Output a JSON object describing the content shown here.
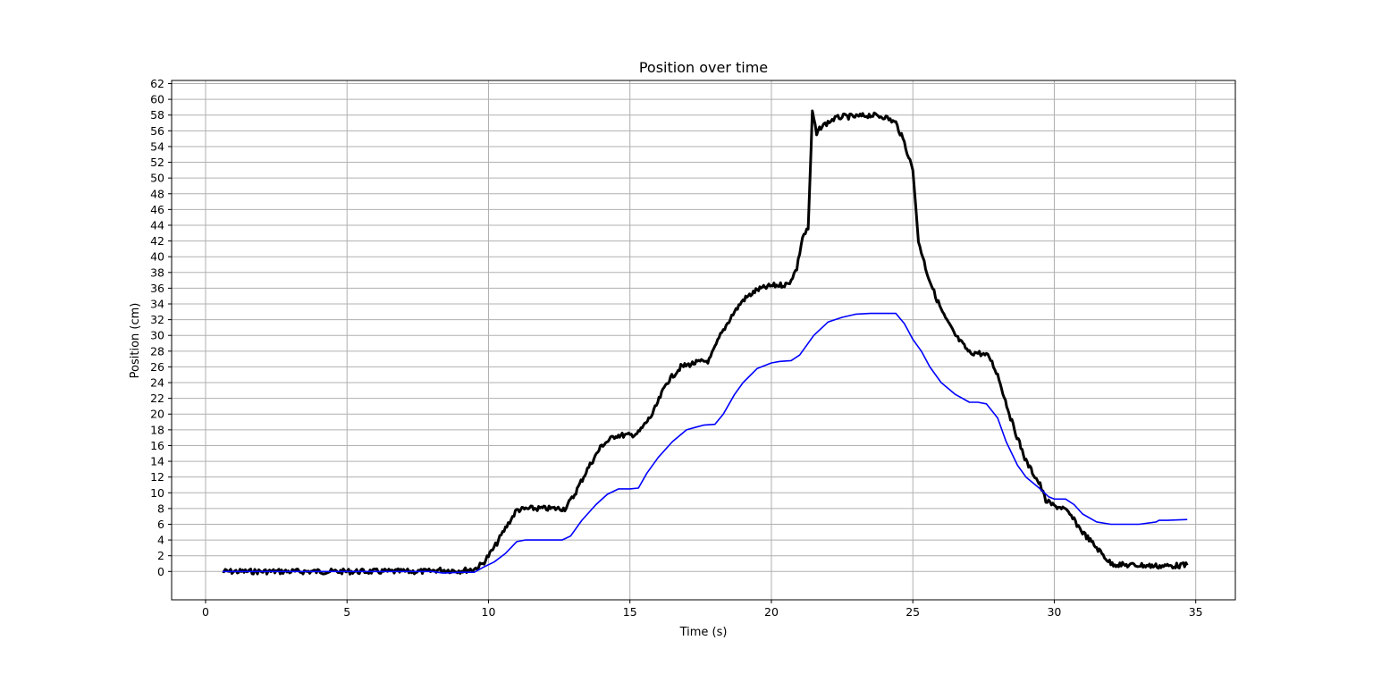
{
  "chart_data": {
    "type": "line",
    "title": "Position over time",
    "xlabel": "Time (s)",
    "ylabel": "Position (cm)",
    "xlim": [
      -1.2,
      36.4
    ],
    "ylim": [
      -3.6,
      62.4
    ],
    "xticks": [
      0,
      5,
      10,
      15,
      20,
      25,
      30,
      35
    ],
    "yticks": [
      0,
      2,
      4,
      6,
      8,
      10,
      12,
      14,
      16,
      18,
      20,
      22,
      24,
      26,
      28,
      30,
      32,
      34,
      36,
      38,
      40,
      42,
      44,
      46,
      48,
      50,
      52,
      54,
      56,
      58,
      60,
      62
    ],
    "grid": true,
    "series": [
      {
        "color": "#000000",
        "style": "noisy-thick",
        "x": [
          0.6,
          7.9,
          8.2,
          9.0,
          9.5,
          9.8,
          10.2,
          10.6,
          11.0,
          11.5,
          12.0,
          12.7,
          13.0,
          13.5,
          14.0,
          14.5,
          15.0,
          15.3,
          15.8,
          16.3,
          16.8,
          17.3,
          17.8,
          18.2,
          18.6,
          19.0,
          19.5,
          20.0,
          20.6,
          20.9,
          21.1,
          21.3,
          21.45,
          21.6,
          21.75,
          22.2,
          22.5,
          23.0,
          23.5,
          24.0,
          24.4,
          24.7,
          25.0,
          25.2,
          25.5,
          25.8,
          26.1,
          26.5,
          27.0,
          27.3,
          27.7,
          28.0,
          28.5,
          29.0,
          29.5,
          29.7,
          30.0,
          30.3,
          30.6,
          31.0,
          31.5,
          32.0,
          32.5,
          33.0,
          33.5,
          34.0,
          34.7
        ],
        "y": [
          0.0,
          0.0,
          0.2,
          0.1,
          0.3,
          1.0,
          3.0,
          5.5,
          7.8,
          8.0,
          8.0,
          8.0,
          9.5,
          13.0,
          16.0,
          17.3,
          17.3,
          17.6,
          20.0,
          24.0,
          26.0,
          26.5,
          26.8,
          30.0,
          32.5,
          34.5,
          35.8,
          36.3,
          36.5,
          38.5,
          42.5,
          43.5,
          58.5,
          55.5,
          56.5,
          57.5,
          57.8,
          57.8,
          58.0,
          57.8,
          57.0,
          54.5,
          51.0,
          42.0,
          38.0,
          35.0,
          32.5,
          30.0,
          27.8,
          27.8,
          27.3,
          25.0,
          19.0,
          14.0,
          11.0,
          9.0,
          8.3,
          8.1,
          7.0,
          5.0,
          3.0,
          1.0,
          0.8,
          0.8,
          0.7,
          0.7,
          0.8
        ]
      },
      {
        "color": "#0000ff",
        "style": "line",
        "x": [
          0.6,
          8.0,
          8.4,
          9.0,
          9.5,
          9.8,
          10.2,
          10.6,
          11.0,
          11.3,
          12.0,
          12.6,
          12.9,
          13.3,
          13.8,
          14.2,
          14.6,
          15.0,
          15.3,
          15.6,
          16.0,
          16.5,
          17.0,
          17.3,
          17.6,
          18.0,
          18.3,
          18.7,
          19.0,
          19.5,
          20.0,
          20.3,
          20.7,
          21.0,
          21.5,
          22.0,
          22.5,
          23.0,
          23.5,
          24.0,
          24.4,
          24.7,
          25.0,
          25.3,
          25.6,
          26.0,
          26.5,
          27.0,
          27.3,
          27.6,
          28.0,
          28.3,
          28.7,
          29.0,
          29.5,
          29.8,
          30.0,
          30.4,
          30.7,
          31.0,
          31.5,
          32.0,
          33.0,
          33.6,
          33.7,
          34.0,
          34.7
        ],
        "y": [
          0.0,
          0.0,
          -0.2,
          -0.1,
          -0.1,
          0.5,
          1.2,
          2.3,
          3.8,
          4.0,
          4.0,
          4.0,
          4.5,
          6.5,
          8.5,
          9.8,
          10.5,
          10.5,
          10.6,
          12.5,
          14.5,
          16.5,
          18.0,
          18.3,
          18.6,
          18.7,
          20.0,
          22.5,
          24.0,
          25.8,
          26.5,
          26.7,
          26.8,
          27.5,
          30.0,
          31.7,
          32.3,
          32.7,
          32.8,
          32.8,
          32.8,
          31.5,
          29.5,
          28.0,
          26.0,
          24.0,
          22.5,
          21.5,
          21.5,
          21.3,
          19.5,
          16.5,
          13.5,
          12.0,
          10.5,
          9.5,
          9.2,
          9.2,
          8.5,
          7.3,
          6.3,
          6.0,
          6.0,
          6.3,
          6.5,
          6.5,
          6.6
        ]
      }
    ]
  }
}
